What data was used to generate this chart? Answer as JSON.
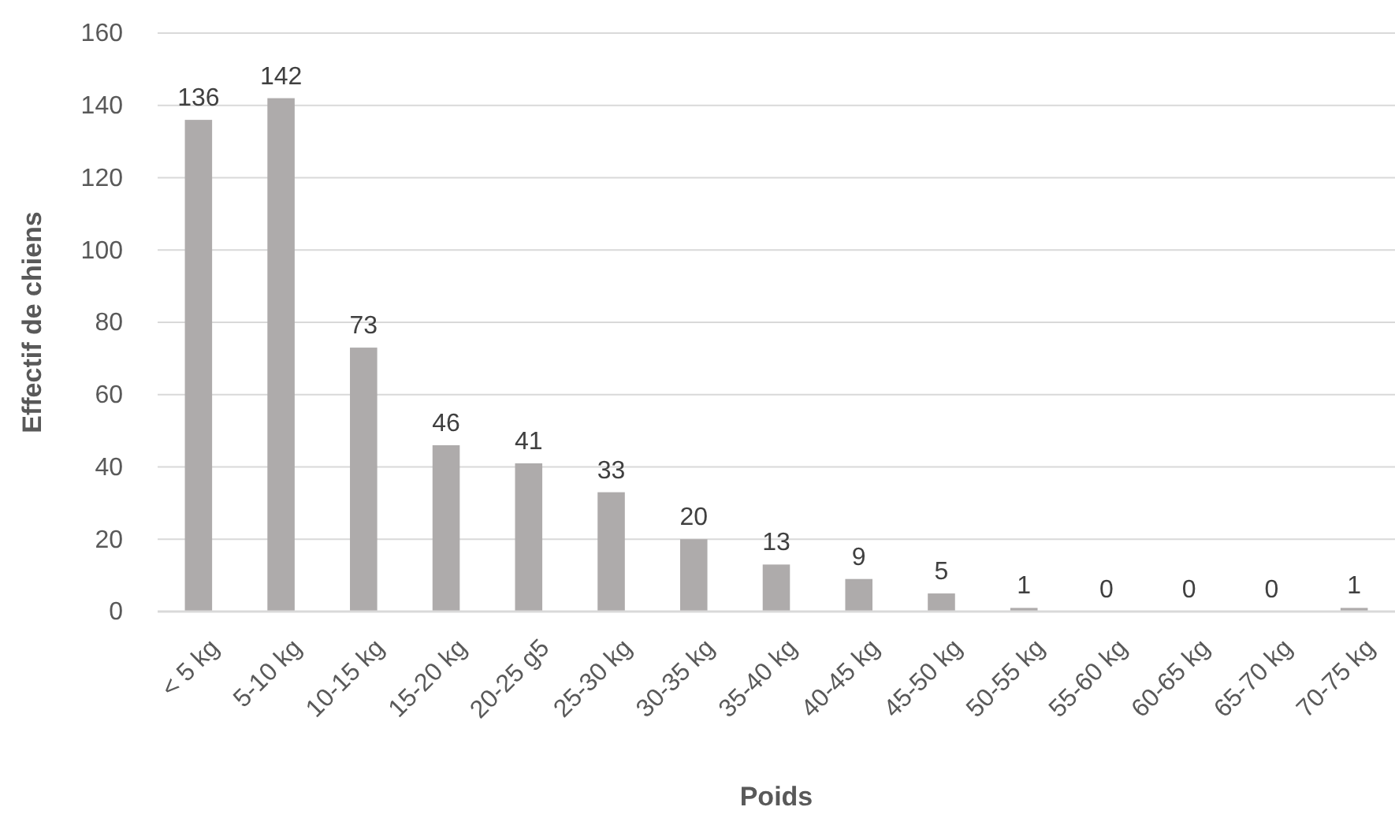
{
  "chart_data": {
    "type": "bar",
    "xlabel": "Poids",
    "ylabel": "Effectif de chiens",
    "categories": [
      "< 5 kg",
      "5-10 kg",
      "10-15 kg",
      "15-20 kg",
      "20-25 g5",
      "25-30 kg",
      "30-35 kg",
      "35-40 kg",
      "40-45 kg",
      "45-50 kg",
      "50-55 kg",
      "55-60 kg",
      "60-65 kg",
      "65-70 kg",
      "70-75 kg"
    ],
    "values": [
      136,
      142,
      73,
      46,
      41,
      33,
      20,
      13,
      9,
      5,
      1,
      0,
      0,
      0,
      1
    ],
    "color": "#aeabab",
    "ylim": [
      0,
      160
    ],
    "yticks": [
      0,
      20,
      40,
      60,
      80,
      100,
      120,
      140,
      160
    ],
    "grid": "y",
    "data_labels": true
  }
}
